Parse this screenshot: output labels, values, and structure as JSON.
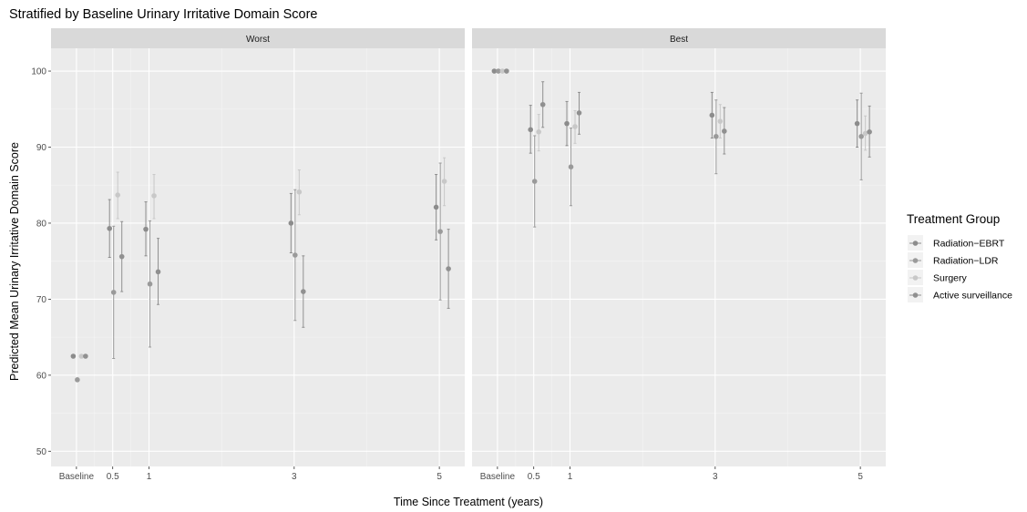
{
  "chart_data": {
    "type": "scatter",
    "title": "Stratified by Baseline Urinary Irritative Domain Score",
    "xlabel": "Time Since Treatment (years)",
    "ylabel": "Predicted Mean Urinary Irritative Domain Score",
    "x_ticks": [
      "Baseline",
      "0.5",
      "1",
      "3",
      "5"
    ],
    "x_tick_values": [
      0,
      0.5,
      1,
      3,
      5
    ],
    "xlim": [
      -0.35,
      5.35
    ],
    "ylim": [
      48,
      103
    ],
    "y_ticks": [
      50,
      60,
      70,
      80,
      90,
      100
    ],
    "grid": true,
    "error_bars": true,
    "legend_position": "right",
    "legend_title": "Treatment Group",
    "panels": [
      {
        "label": "Worst",
        "series": [
          {
            "name": "Radiation−EBRT",
            "color": "#8c8c8c",
            "points": [
              {
                "x": 0,
                "y": 62.5
              },
              {
                "x": 0.5,
                "y": 79.3,
                "lo": 75.5,
                "hi": 83.1
              },
              {
                "x": 1,
                "y": 79.2,
                "lo": 75.7,
                "hi": 82.8
              },
              {
                "x": 3,
                "y": 80.0,
                "lo": 76.1,
                "hi": 83.9
              },
              {
                "x": 5,
                "y": 82.1,
                "lo": 77.8,
                "hi": 86.4
              }
            ]
          },
          {
            "name": "Radiation−LDR",
            "color": "#9a9a9a",
            "points": [
              {
                "x": 0,
                "y": 59.4
              },
              {
                "x": 0.5,
                "y": 70.9,
                "lo": 62.2,
                "hi": 79.6
              },
              {
                "x": 1,
                "y": 72.0,
                "lo": 63.7,
                "hi": 80.3
              },
              {
                "x": 3,
                "y": 75.8,
                "lo": 67.2,
                "hi": 84.4
              },
              {
                "x": 5,
                "y": 78.9,
                "lo": 69.9,
                "hi": 87.9
              }
            ]
          },
          {
            "name": "Surgery",
            "color": "#c8c8c8",
            "points": [
              {
                "x": 0,
                "y": 62.5
              },
              {
                "x": 0.5,
                "y": 83.7,
                "lo": 80.6,
                "hi": 86.7
              },
              {
                "x": 1,
                "y": 83.6,
                "lo": 80.6,
                "hi": 86.4
              },
              {
                "x": 3,
                "y": 84.1,
                "lo": 81.1,
                "hi": 87.0
              },
              {
                "x": 5,
                "y": 85.5,
                "lo": 82.3,
                "hi": 88.6
              }
            ]
          },
          {
            "name": "Active surveillance",
            "color": "#909090",
            "points": [
              {
                "x": 0,
                "y": 62.5
              },
              {
                "x": 0.5,
                "y": 75.6,
                "lo": 71.0,
                "hi": 80.2
              },
              {
                "x": 1,
                "y": 73.6,
                "lo": 69.3,
                "hi": 78.0
              },
              {
                "x": 3,
                "y": 71.0,
                "lo": 66.3,
                "hi": 75.7
              },
              {
                "x": 5,
                "y": 74.0,
                "lo": 68.8,
                "hi": 79.2
              }
            ]
          }
        ]
      },
      {
        "label": "Best",
        "series": [
          {
            "name": "Radiation−EBRT",
            "color": "#8c8c8c",
            "points": [
              {
                "x": 0,
                "y": 100.0
              },
              {
                "x": 0.5,
                "y": 92.3,
                "lo": 89.2,
                "hi": 95.5
              },
              {
                "x": 1,
                "y": 93.1,
                "lo": 90.2,
                "hi": 96.0
              },
              {
                "x": 3,
                "y": 94.2,
                "lo": 91.2,
                "hi": 97.2
              },
              {
                "x": 5,
                "y": 93.1,
                "lo": 90.0,
                "hi": 96.2
              }
            ]
          },
          {
            "name": "Radiation−LDR",
            "color": "#9a9a9a",
            "points": [
              {
                "x": 0,
                "y": 100.0
              },
              {
                "x": 0.5,
                "y": 85.5,
                "lo": 79.5,
                "hi": 91.5
              },
              {
                "x": 1,
                "y": 87.4,
                "lo": 82.3,
                "hi": 92.5
              },
              {
                "x": 3,
                "y": 91.4,
                "lo": 86.5,
                "hi": 96.2
              },
              {
                "x": 5,
                "y": 91.4,
                "lo": 85.7,
                "hi": 97.1
              }
            ]
          },
          {
            "name": "Surgery",
            "color": "#c8c8c8",
            "points": [
              {
                "x": 0,
                "y": 100.0
              },
              {
                "x": 0.5,
                "y": 92.0,
                "lo": 89.5,
                "hi": 94.3
              },
              {
                "x": 1,
                "y": 92.7,
                "lo": 90.5,
                "hi": 94.8
              },
              {
                "x": 3,
                "y": 93.4,
                "lo": 91.2,
                "hi": 95.6
              },
              {
                "x": 5,
                "y": 91.8,
                "lo": 89.6,
                "hi": 94.1
              }
            ]
          },
          {
            "name": "Active surveillance",
            "color": "#909090",
            "points": [
              {
                "x": 0,
                "y": 100.0
              },
              {
                "x": 0.5,
                "y": 95.6,
                "lo": 92.6,
                "hi": 98.6
              },
              {
                "x": 1,
                "y": 94.5,
                "lo": 91.7,
                "hi": 97.2
              },
              {
                "x": 3,
                "y": 92.1,
                "lo": 89.1,
                "hi": 95.2
              },
              {
                "x": 5,
                "y": 92.0,
                "lo": 88.7,
                "hi": 95.4
              }
            ]
          }
        ]
      }
    ]
  }
}
